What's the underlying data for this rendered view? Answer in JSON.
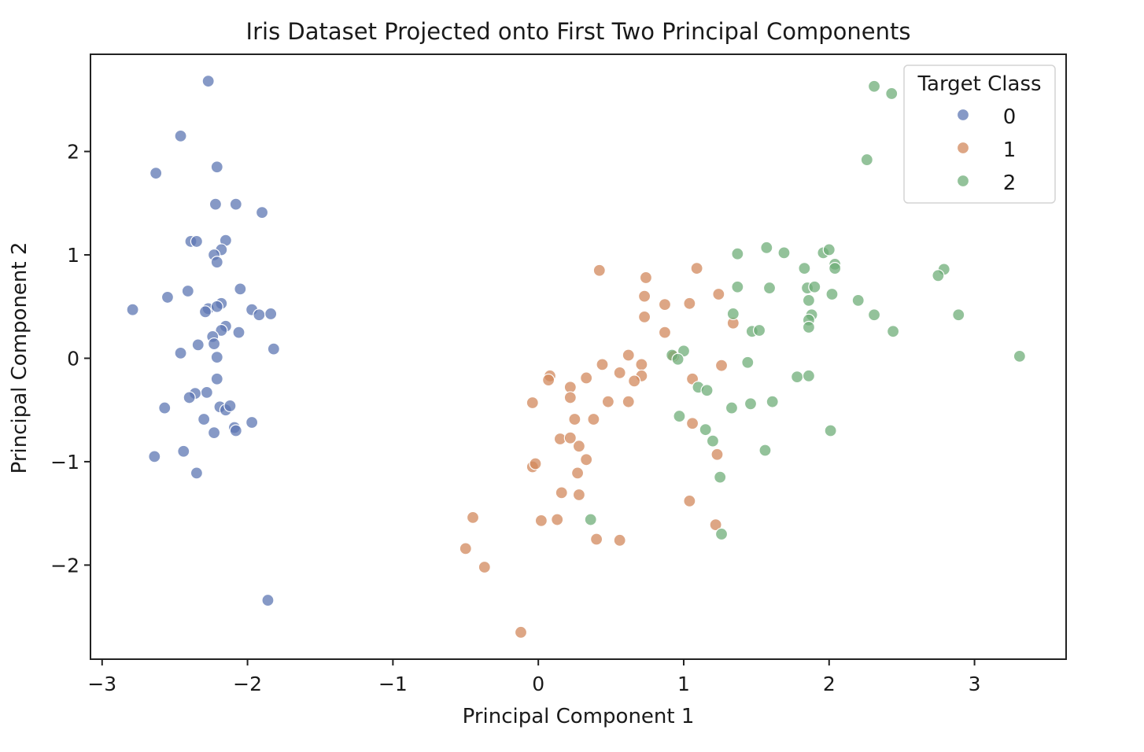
{
  "chart_data": {
    "type": "scatter",
    "title": "Iris Dataset Projected onto First Two Principal Components",
    "xlabel": "Principal Component 1",
    "ylabel": "Principal Component 2",
    "xlim": [
      -3.08,
      3.63
    ],
    "ylim": [
      -2.91,
      2.94
    ],
    "xticks": [
      -3,
      -2,
      -1,
      0,
      1,
      2,
      3
    ],
    "yticks": [
      -2,
      -1,
      0,
      1,
      2
    ],
    "xtick_labels": [
      "−3",
      "−2",
      "−1",
      "0",
      "1",
      "2",
      "3"
    ],
    "ytick_labels": [
      "−2",
      "−1",
      "0",
      "1",
      "2"
    ],
    "grid": false,
    "legend": {
      "title": "Target Class",
      "position": "top-right"
    },
    "series": [
      {
        "name": "0",
        "color": "#5d77b3",
        "points": [
          [
            -2.27,
            2.68
          ],
          [
            -2.46,
            2.15
          ],
          [
            -2.63,
            1.79
          ],
          [
            -2.21,
            1.85
          ],
          [
            -2.22,
            1.49
          ],
          [
            -2.08,
            1.49
          ],
          [
            -1.9,
            1.41
          ],
          [
            -2.15,
            1.14
          ],
          [
            -2.39,
            1.13
          ],
          [
            -2.35,
            1.13
          ],
          [
            -2.18,
            1.05
          ],
          [
            -2.23,
            1.0
          ],
          [
            -2.21,
            0.93
          ],
          [
            -2.05,
            0.67
          ],
          [
            -2.41,
            0.65
          ],
          [
            -2.55,
            0.59
          ],
          [
            -2.79,
            0.47
          ],
          [
            -2.27,
            0.48
          ],
          [
            -2.18,
            0.53
          ],
          [
            -2.21,
            0.5
          ],
          [
            -2.29,
            0.45
          ],
          [
            -1.97,
            0.47
          ],
          [
            -1.92,
            0.42
          ],
          [
            -1.84,
            0.43
          ],
          [
            -2.15,
            0.31
          ],
          [
            -2.18,
            0.27
          ],
          [
            -2.06,
            0.25
          ],
          [
            -2.24,
            0.21
          ],
          [
            -2.23,
            0.14
          ],
          [
            -2.34,
            0.13
          ],
          [
            -2.46,
            0.05
          ],
          [
            -1.82,
            0.09
          ],
          [
            -2.21,
            0.01
          ],
          [
            -2.21,
            -0.2
          ],
          [
            -2.28,
            -0.33
          ],
          [
            -2.36,
            -0.34
          ],
          [
            -2.4,
            -0.38
          ],
          [
            -2.57,
            -0.48
          ],
          [
            -2.19,
            -0.47
          ],
          [
            -2.15,
            -0.5
          ],
          [
            -2.12,
            -0.46
          ],
          [
            -2.3,
            -0.59
          ],
          [
            -1.97,
            -0.62
          ],
          [
            -2.09,
            -0.67
          ],
          [
            -2.08,
            -0.7
          ],
          [
            -2.23,
            -0.72
          ],
          [
            -2.44,
            -0.9
          ],
          [
            -2.64,
            -0.95
          ],
          [
            -2.35,
            -1.11
          ],
          [
            -1.86,
            -2.34
          ]
        ]
      },
      {
        "name": "1",
        "color": "#d1885c",
        "points": [
          [
            0.42,
            0.85
          ],
          [
            0.74,
            0.78
          ],
          [
            1.09,
            0.87
          ],
          [
            0.73,
            0.6
          ],
          [
            1.24,
            0.62
          ],
          [
            0.87,
            0.52
          ],
          [
            1.04,
            0.53
          ],
          [
            0.73,
            0.4
          ],
          [
            1.34,
            0.34
          ],
          [
            0.87,
            0.25
          ],
          [
            0.93,
            0.02
          ],
          [
            0.62,
            0.03
          ],
          [
            0.44,
            -0.06
          ],
          [
            0.71,
            -0.06
          ],
          [
            1.26,
            -0.07
          ],
          [
            0.56,
            -0.14
          ],
          [
            0.33,
            -0.19
          ],
          [
            0.71,
            -0.17
          ],
          [
            0.08,
            -0.17
          ],
          [
            0.07,
            -0.21
          ],
          [
            0.66,
            -0.22
          ],
          [
            0.22,
            -0.28
          ],
          [
            0.22,
            -0.38
          ],
          [
            1.06,
            -0.2
          ],
          [
            0.48,
            -0.42
          ],
          [
            0.62,
            -0.42
          ],
          [
            -0.04,
            -0.43
          ],
          [
            0.25,
            -0.59
          ],
          [
            0.38,
            -0.59
          ],
          [
            1.06,
            -0.63
          ],
          [
            0.15,
            -0.78
          ],
          [
            0.22,
            -0.77
          ],
          [
            0.28,
            -0.85
          ],
          [
            0.33,
            -0.98
          ],
          [
            1.23,
            -0.93
          ],
          [
            0.27,
            -1.11
          ],
          [
            -0.04,
            -1.05
          ],
          [
            -0.02,
            -1.02
          ],
          [
            0.16,
            -1.3
          ],
          [
            0.28,
            -1.32
          ],
          [
            1.04,
            -1.38
          ],
          [
            -0.45,
            -1.54
          ],
          [
            0.02,
            -1.57
          ],
          [
            0.13,
            -1.56
          ],
          [
            1.22,
            -1.61
          ],
          [
            0.4,
            -1.75
          ],
          [
            0.56,
            -1.76
          ],
          [
            -0.5,
            -1.84
          ],
          [
            -0.37,
            -2.02
          ],
          [
            -0.12,
            -2.65
          ]
        ]
      },
      {
        "name": "2",
        "color": "#6fad78",
        "points": [
          [
            2.31,
            2.63
          ],
          [
            2.43,
            2.56
          ],
          [
            2.26,
            1.92
          ],
          [
            1.57,
            1.07
          ],
          [
            1.69,
            1.02
          ],
          [
            1.96,
            1.02
          ],
          [
            2.0,
            1.05
          ],
          [
            1.37,
            1.01
          ],
          [
            2.04,
            0.91
          ],
          [
            2.04,
            0.87
          ],
          [
            1.83,
            0.87
          ],
          [
            2.79,
            0.86
          ],
          [
            2.75,
            0.8
          ],
          [
            1.37,
            0.69
          ],
          [
            1.59,
            0.68
          ],
          [
            1.85,
            0.68
          ],
          [
            1.9,
            0.69
          ],
          [
            2.02,
            0.62
          ],
          [
            1.86,
            0.56
          ],
          [
            2.2,
            0.56
          ],
          [
            1.34,
            0.43
          ],
          [
            1.88,
            0.42
          ],
          [
            2.31,
            0.42
          ],
          [
            2.89,
            0.42
          ],
          [
            1.86,
            0.37
          ],
          [
            1.86,
            0.3
          ],
          [
            1.47,
            0.26
          ],
          [
            1.52,
            0.27
          ],
          [
            2.44,
            0.26
          ],
          [
            1.0,
            0.07
          ],
          [
            0.92,
            0.03
          ],
          [
            0.96,
            -0.01
          ],
          [
            3.31,
            0.02
          ],
          [
            1.44,
            -0.04
          ],
          [
            1.78,
            -0.18
          ],
          [
            1.86,
            -0.17
          ],
          [
            1.1,
            -0.28
          ],
          [
            1.16,
            -0.31
          ],
          [
            1.33,
            -0.48
          ],
          [
            1.46,
            -0.44
          ],
          [
            1.61,
            -0.42
          ],
          [
            0.97,
            -0.56
          ],
          [
            1.15,
            -0.69
          ],
          [
            1.2,
            -0.8
          ],
          [
            2.01,
            -0.7
          ],
          [
            1.56,
            -0.89
          ],
          [
            1.25,
            -1.15
          ],
          [
            0.36,
            -1.56
          ],
          [
            1.26,
            -1.7
          ]
        ]
      }
    ]
  }
}
